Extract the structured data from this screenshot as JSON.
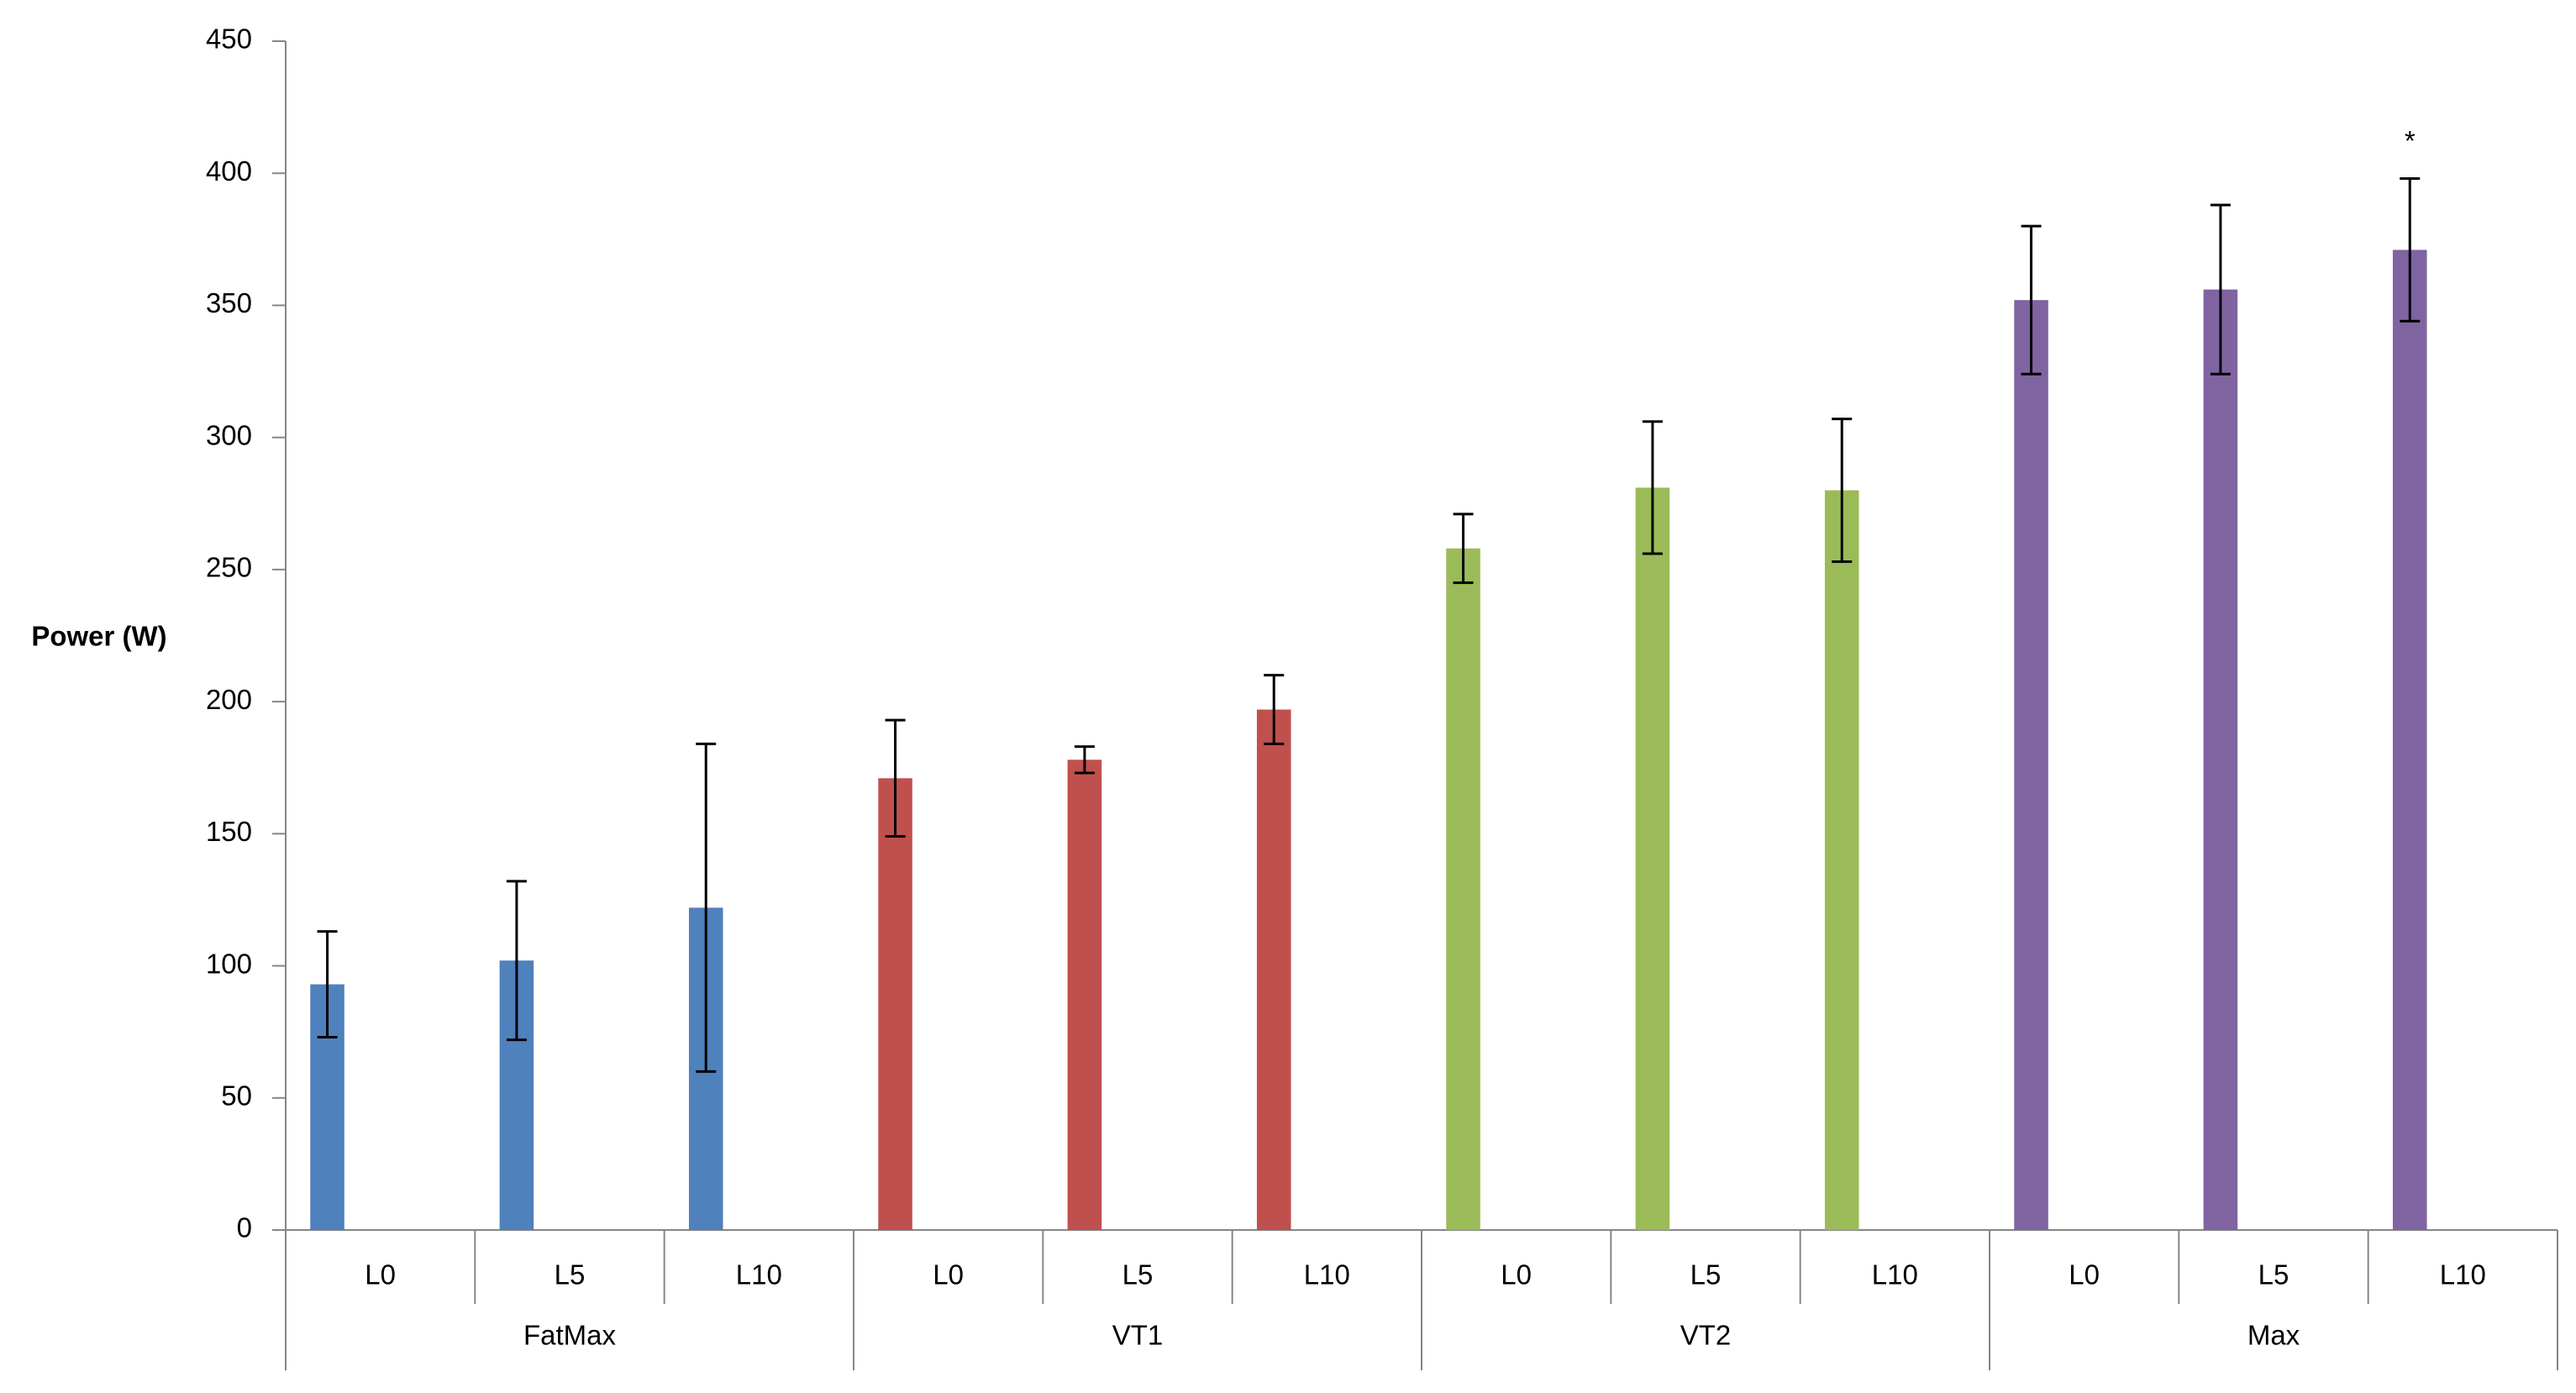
{
  "chart_data": {
    "type": "bar",
    "y_label": "Power (W)",
    "ylim": [
      0,
      450
    ],
    "yticks": [
      0,
      50,
      100,
      150,
      200,
      250,
      300,
      350,
      400,
      450
    ],
    "series": [
      {
        "name": "FatMax",
        "color": "#4f81bd",
        "categories": [
          "L0",
          "L5",
          "L10"
        ],
        "values": [
          93,
          102,
          122
        ],
        "errors": [
          20,
          30,
          62
        ]
      },
      {
        "name": "VT1",
        "color": "#c0504d",
        "categories": [
          "L0",
          "L5",
          "L10"
        ],
        "values": [
          171,
          178,
          197
        ],
        "errors": [
          22,
          5,
          13
        ]
      },
      {
        "name": "VT2",
        "color": "#9bbb59",
        "categories": [
          "L0",
          "L5",
          "L10"
        ],
        "values": [
          258,
          281,
          280
        ],
        "errors": [
          13,
          25,
          27
        ]
      },
      {
        "name": "Max",
        "color": "#8064a2",
        "categories": [
          "L0",
          "L5",
          "L10"
        ],
        "values": [
          352,
          356,
          371
        ],
        "errors": [
          28,
          32,
          27
        ]
      }
    ],
    "annotations": [
      {
        "text": "*"
      }
    ]
  }
}
